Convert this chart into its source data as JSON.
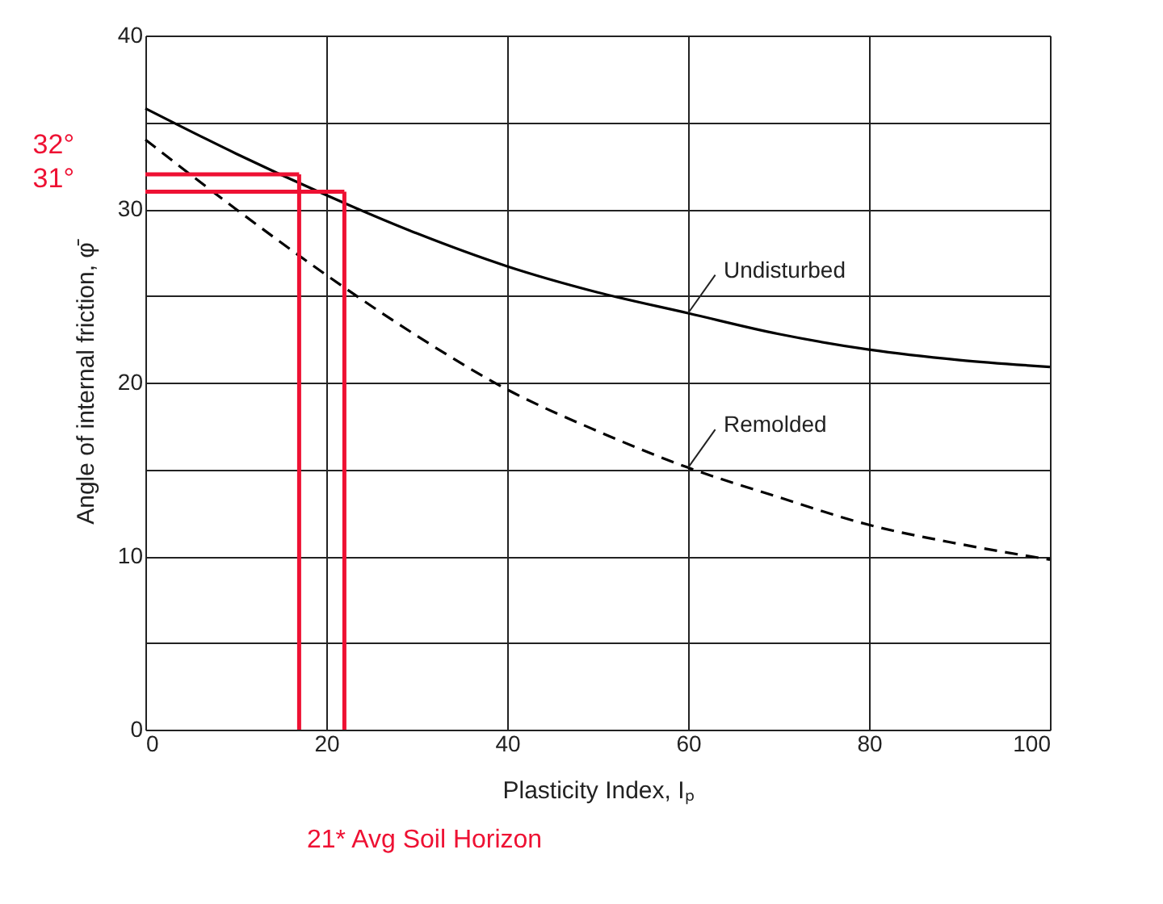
{
  "chart_data": {
    "type": "line",
    "xlabel": "Plasticity Index, Iₚ",
    "ylabel": "Angle of internal friction, φ̄",
    "x": [
      0,
      10,
      20,
      30,
      40,
      50,
      60,
      70,
      80,
      90,
      100
    ],
    "series": [
      {
        "name": "Undisturbed",
        "color": "#000000",
        "line_style": "solid",
        "values": [
          35.8,
          33.2,
          30.8,
          28.6,
          26.7,
          25.2,
          24.0,
          22.8,
          21.9,
          21.3,
          20.9
        ]
      },
      {
        "name": "Remolded",
        "color": "#000000",
        "line_style": "dashed",
        "values": [
          34.0,
          30.0,
          26.2,
          22.7,
          19.6,
          17.2,
          15.1,
          13.4,
          11.8,
          10.7,
          9.8
        ]
      }
    ],
    "xlim": [
      0,
      100
    ],
    "ylim": [
      0,
      40
    ],
    "xticks": [
      0,
      20,
      40,
      60,
      80,
      100
    ],
    "yticks": [
      0,
      {
        "value": 5,
        "label": null
      },
      10,
      {
        "value": 15,
        "label": null
      },
      20,
      {
        "value": 25,
        "label": null
      },
      30,
      {
        "value": 35,
        "label": null
      },
      40
    ],
    "grid": true,
    "marker": "none",
    "ref_lines": [
      {
        "axis": "y",
        "value": 32,
        "label": "32°",
        "color": "#ee1133"
      },
      {
        "axis": "y",
        "value": 31,
        "label": "31°",
        "color": "#ee1133"
      },
      {
        "axis": "x",
        "value": 17,
        "label": null,
        "color": "#ee1133"
      },
      {
        "axis": "x",
        "value": 22,
        "label": null,
        "color": "#ee1133"
      }
    ],
    "annotations": [
      "21* Avg Soil Horizon"
    ]
  }
}
